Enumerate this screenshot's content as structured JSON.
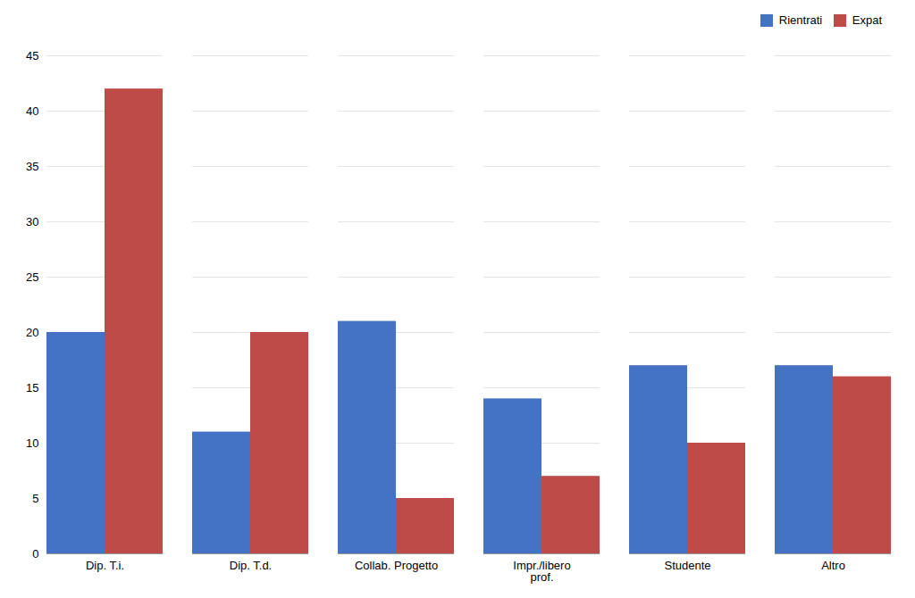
{
  "chart_data": {
    "type": "bar",
    "categories": [
      "Dip. T.i.",
      "Dip. T.d.",
      "Collab. Progetto",
      "Impr./libero\nprof.",
      "Studente",
      "Altro"
    ],
    "series": [
      {
        "name": "Rientrati",
        "color": "#4472C4",
        "values": [
          20,
          11,
          21,
          14,
          17,
          17
        ]
      },
      {
        "name": "Expat",
        "color": "#BE4B48",
        "values": [
          42,
          20,
          5,
          7,
          10,
          16
        ]
      }
    ],
    "ylim": [
      0,
      45
    ],
    "yticks": [
      0,
      5,
      10,
      15,
      20,
      25,
      30,
      35,
      40,
      45
    ],
    "grid": true,
    "legend": "upper right"
  }
}
